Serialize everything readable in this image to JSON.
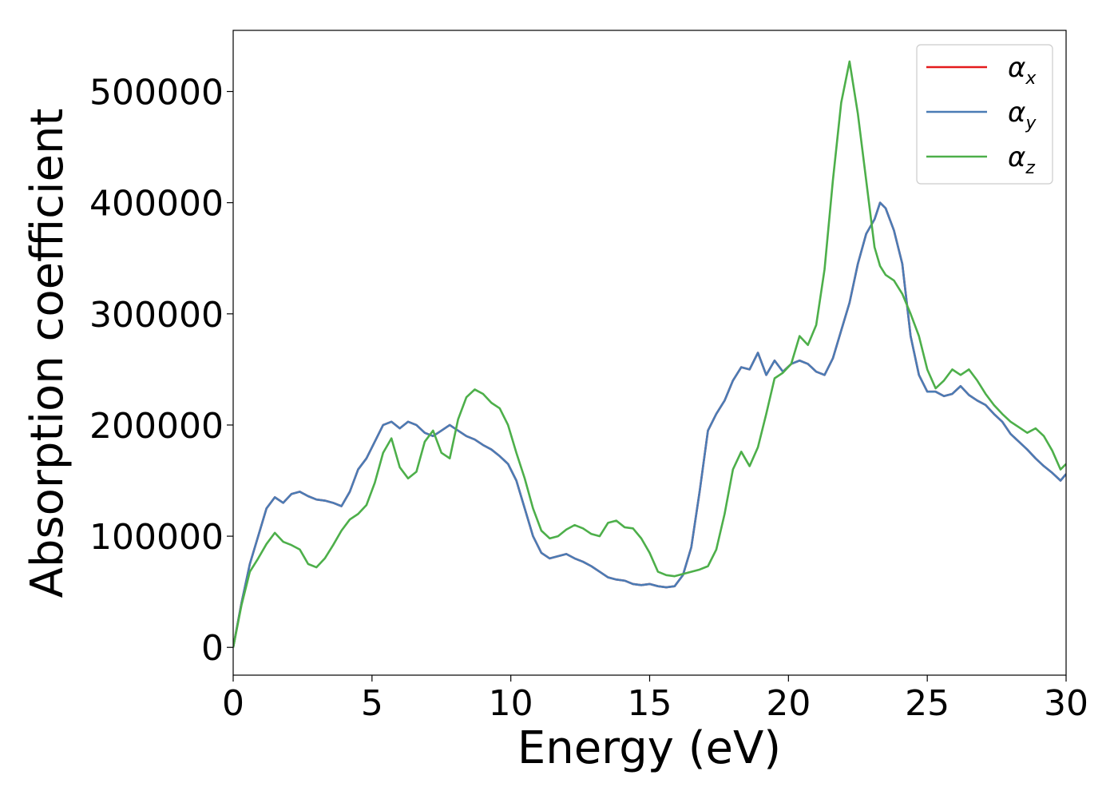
{
  "chart_data": {
    "type": "line",
    "xlabel": "Energy (eV)",
    "ylabel": "Absorption coefficient",
    "xlim": [
      0,
      30
    ],
    "ylim": [
      -25000,
      555000
    ],
    "xticks": [
      0,
      5,
      10,
      15,
      20,
      25,
      30
    ],
    "xtick_labels": [
      "0",
      "5",
      "10",
      "15",
      "20",
      "25",
      "30"
    ],
    "yticks": [
      0,
      100000,
      200000,
      300000,
      400000,
      500000
    ],
    "ytick_labels": [
      "0",
      "100000",
      "200000",
      "300000",
      "400000",
      "500000"
    ],
    "grid": false,
    "legend_position": "top-right",
    "series": [
      {
        "name": "α",
        "subscript": "x",
        "color": "#e41a1c",
        "x": [
          0,
          0.3,
          0.6,
          0.9,
          1.2,
          1.5,
          1.8,
          2.1,
          2.4,
          2.7,
          3.0,
          3.3,
          3.6,
          3.9,
          4.2,
          4.5,
          4.8,
          5.1,
          5.4,
          5.7,
          6.0,
          6.3,
          6.6,
          6.9,
          7.2,
          7.5,
          7.8,
          8.1,
          8.4,
          8.7,
          9.0,
          9.3,
          9.6,
          9.9,
          10.2,
          10.5,
          10.8,
          11.1,
          11.4,
          11.7,
          12.0,
          12.3,
          12.6,
          12.9,
          13.2,
          13.5,
          13.8,
          14.1,
          14.4,
          14.7,
          15.0,
          15.3,
          15.6,
          15.9,
          16.2,
          16.5,
          16.8,
          17.1,
          17.4,
          17.7,
          18.0,
          18.3,
          18.6,
          18.9,
          19.2,
          19.5,
          19.8,
          20.1,
          20.4,
          20.7,
          21.0,
          21.3,
          21.6,
          21.9,
          22.2,
          22.5,
          22.8,
          23.1,
          23.3,
          23.5,
          23.8,
          24.1,
          24.4,
          24.7,
          25.0,
          25.3,
          25.6,
          25.9,
          26.2,
          26.5,
          26.8,
          27.1,
          27.4,
          27.7,
          28.0,
          28.3,
          28.6,
          28.9,
          29.2,
          29.5,
          29.8,
          30.0
        ],
        "y": [
          0,
          40000,
          75000,
          100000,
          125000,
          135000,
          130000,
          138000,
          140000,
          136000,
          133000,
          132000,
          130000,
          127000,
          140000,
          160000,
          170000,
          185000,
          200000,
          203000,
          197000,
          203000,
          200000,
          193000,
          190000,
          195000,
          200000,
          195000,
          190000,
          187000,
          182000,
          178000,
          172000,
          165000,
          150000,
          125000,
          100000,
          85000,
          80000,
          82000,
          84000,
          80000,
          77000,
          73000,
          68000,
          63000,
          61000,
          60000,
          57000,
          56000,
          57000,
          55000,
          54000,
          55000,
          65000,
          90000,
          140000,
          195000,
          210000,
          222000,
          240000,
          252000,
          250000,
          265000,
          245000,
          258000,
          248000,
          255000,
          258000,
          255000,
          248000,
          245000,
          260000,
          285000,
          310000,
          345000,
          372000,
          385000,
          400000,
          395000,
          375000,
          345000,
          280000,
          245000,
          230000,
          230000,
          226000,
          228000,
          235000,
          227000,
          222000,
          218000,
          210000,
          203000,
          192000,
          185000,
          178000,
          170000,
          163000,
          157000,
          150000,
          156000
        ]
      },
      {
        "name": "α",
        "subscript": "y",
        "color": "#4a7cb5",
        "x": [
          0,
          0.3,
          0.6,
          0.9,
          1.2,
          1.5,
          1.8,
          2.1,
          2.4,
          2.7,
          3.0,
          3.3,
          3.6,
          3.9,
          4.2,
          4.5,
          4.8,
          5.1,
          5.4,
          5.7,
          6.0,
          6.3,
          6.6,
          6.9,
          7.2,
          7.5,
          7.8,
          8.1,
          8.4,
          8.7,
          9.0,
          9.3,
          9.6,
          9.9,
          10.2,
          10.5,
          10.8,
          11.1,
          11.4,
          11.7,
          12.0,
          12.3,
          12.6,
          12.9,
          13.2,
          13.5,
          13.8,
          14.1,
          14.4,
          14.7,
          15.0,
          15.3,
          15.6,
          15.9,
          16.2,
          16.5,
          16.8,
          17.1,
          17.4,
          17.7,
          18.0,
          18.3,
          18.6,
          18.9,
          19.2,
          19.5,
          19.8,
          20.1,
          20.4,
          20.7,
          21.0,
          21.3,
          21.6,
          21.9,
          22.2,
          22.5,
          22.8,
          23.1,
          23.3,
          23.5,
          23.8,
          24.1,
          24.4,
          24.7,
          25.0,
          25.3,
          25.6,
          25.9,
          26.2,
          26.5,
          26.8,
          27.1,
          27.4,
          27.7,
          28.0,
          28.3,
          28.6,
          28.9,
          29.2,
          29.5,
          29.8,
          30.0
        ],
        "y": [
          0,
          40000,
          75000,
          100000,
          125000,
          135000,
          130000,
          138000,
          140000,
          136000,
          133000,
          132000,
          130000,
          127000,
          140000,
          160000,
          170000,
          185000,
          200000,
          203000,
          197000,
          203000,
          200000,
          193000,
          190000,
          195000,
          200000,
          195000,
          190000,
          187000,
          182000,
          178000,
          172000,
          165000,
          150000,
          125000,
          100000,
          85000,
          80000,
          82000,
          84000,
          80000,
          77000,
          73000,
          68000,
          63000,
          61000,
          60000,
          57000,
          56000,
          57000,
          55000,
          54000,
          55000,
          65000,
          90000,
          140000,
          195000,
          210000,
          222000,
          240000,
          252000,
          250000,
          265000,
          245000,
          258000,
          248000,
          255000,
          258000,
          255000,
          248000,
          245000,
          260000,
          285000,
          310000,
          345000,
          372000,
          385000,
          400000,
          395000,
          375000,
          345000,
          280000,
          245000,
          230000,
          230000,
          226000,
          228000,
          235000,
          227000,
          222000,
          218000,
          210000,
          203000,
          192000,
          185000,
          178000,
          170000,
          163000,
          157000,
          150000,
          156000
        ]
      },
      {
        "name": "α",
        "subscript": "z",
        "color": "#4daf4a",
        "x": [
          0,
          0.3,
          0.6,
          0.9,
          1.2,
          1.5,
          1.8,
          2.1,
          2.4,
          2.7,
          3.0,
          3.3,
          3.6,
          3.9,
          4.2,
          4.5,
          4.8,
          5.1,
          5.4,
          5.7,
          6.0,
          6.3,
          6.6,
          6.9,
          7.2,
          7.5,
          7.8,
          8.1,
          8.4,
          8.7,
          9.0,
          9.3,
          9.6,
          9.9,
          10.2,
          10.5,
          10.8,
          11.1,
          11.4,
          11.7,
          12.0,
          12.3,
          12.6,
          12.9,
          13.2,
          13.5,
          13.8,
          14.1,
          14.4,
          14.7,
          15.0,
          15.3,
          15.6,
          15.9,
          16.2,
          16.5,
          16.8,
          17.1,
          17.4,
          17.7,
          18.0,
          18.3,
          18.6,
          18.9,
          19.2,
          19.5,
          19.8,
          20.1,
          20.4,
          20.7,
          21.0,
          21.3,
          21.6,
          21.9,
          22.2,
          22.5,
          22.8,
          23.1,
          23.3,
          23.5,
          23.8,
          24.1,
          24.4,
          24.7,
          25.0,
          25.3,
          25.6,
          25.9,
          26.2,
          26.5,
          26.8,
          27.1,
          27.4,
          27.7,
          28.0,
          28.3,
          28.6,
          28.9,
          29.2,
          29.5,
          29.8,
          30.0
        ],
        "y": [
          0,
          38000,
          68000,
          80000,
          93000,
          103000,
          95000,
          92000,
          88000,
          75000,
          72000,
          80000,
          92000,
          105000,
          115000,
          120000,
          128000,
          148000,
          175000,
          188000,
          162000,
          152000,
          158000,
          185000,
          195000,
          175000,
          170000,
          205000,
          225000,
          232000,
          228000,
          220000,
          215000,
          200000,
          175000,
          152000,
          125000,
          105000,
          98000,
          100000,
          106000,
          110000,
          107000,
          102000,
          100000,
          112000,
          114000,
          108000,
          107000,
          98000,
          85000,
          68000,
          65000,
          64000,
          66000,
          68000,
          70000,
          73000,
          88000,
          120000,
          160000,
          176000,
          163000,
          180000,
          210000,
          242000,
          247000,
          255000,
          280000,
          272000,
          290000,
          340000,
          420000,
          490000,
          527000,
          480000,
          420000,
          360000,
          343000,
          335000,
          330000,
          318000,
          300000,
          280000,
          250000,
          233000,
          240000,
          250000,
          245000,
          250000,
          240000,
          228000,
          218000,
          210000,
          203000,
          198000,
          193000,
          197000,
          190000,
          177000,
          160000,
          165000
        ]
      }
    ]
  }
}
